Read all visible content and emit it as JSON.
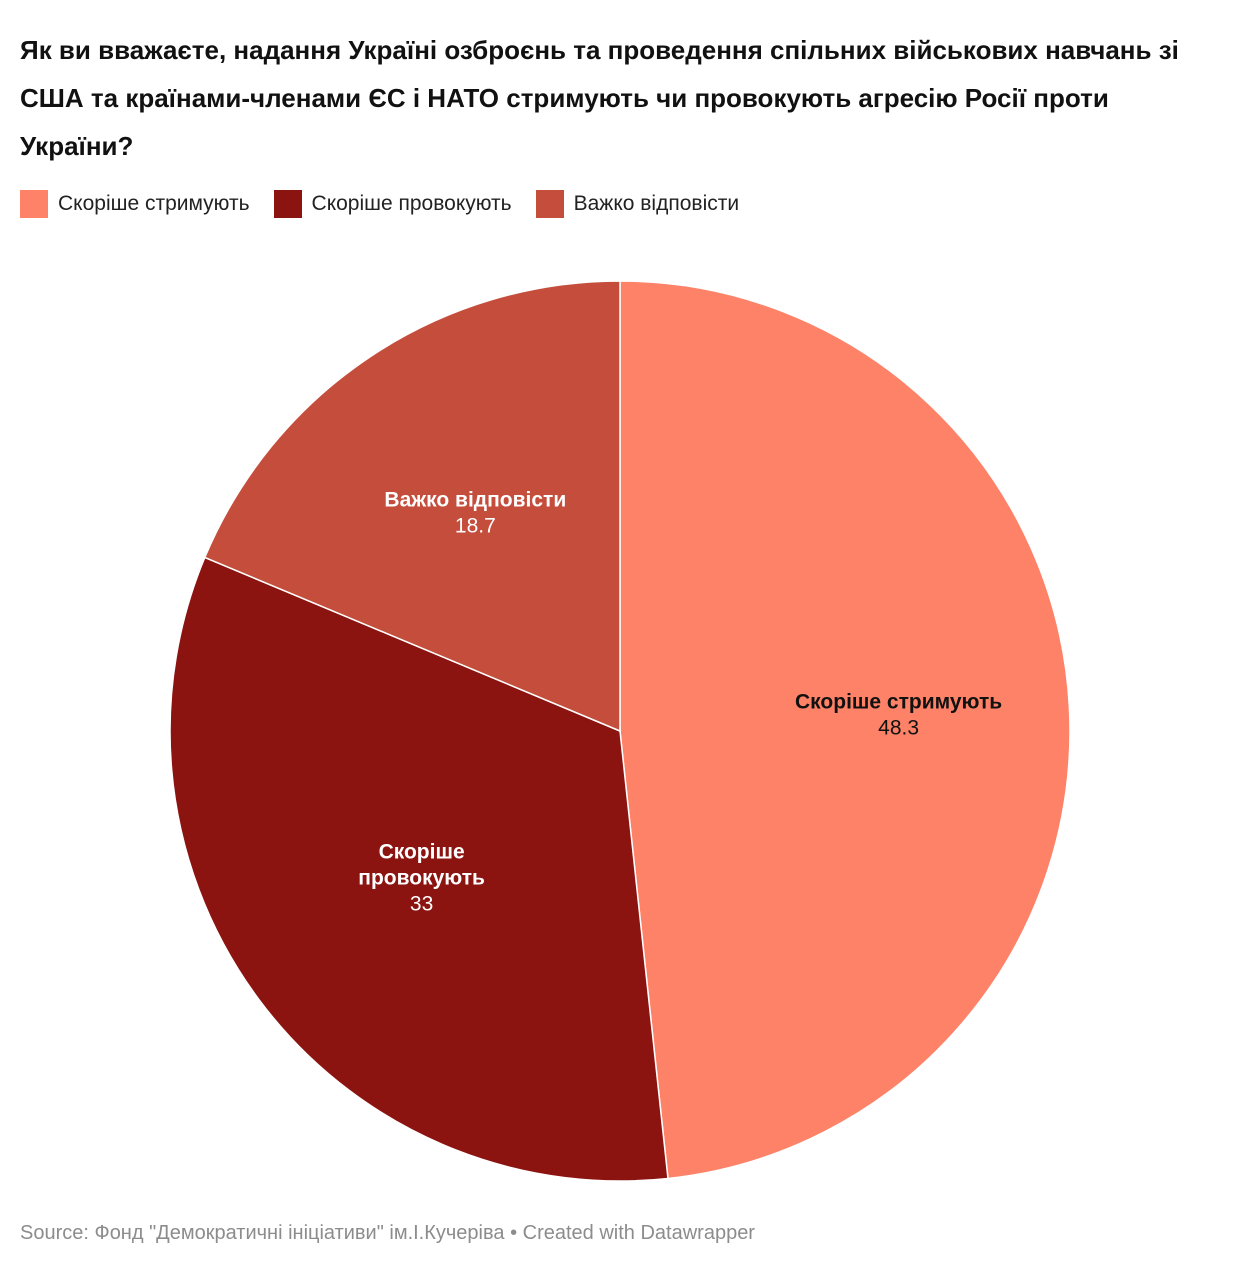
{
  "title": "Як  ви вважаєте, надання Україні озброєнь та проведення спільних військових навчань зі США та країнами-членами ЄС і НАТО стримують чи провокують агресію Росії проти України?",
  "legend": [
    {
      "label": "Скоріше стримують",
      "color": "#fe8267"
    },
    {
      "label": "Скоріше провокують",
      "color": "#8b1411"
    },
    {
      "label": "Важко відповісти",
      "color": "#c44d3b"
    }
  ],
  "chart_data": {
    "type": "pie",
    "categories": [
      "Скоріше стримують",
      "Скоріше провокують",
      "Важко відповісти"
    ],
    "values": [
      48.3,
      33,
      18.7
    ],
    "colors": [
      "#fe8267",
      "#8b1411",
      "#c44d3b"
    ],
    "label_lines": [
      [
        "Скоріше стримують"
      ],
      [
        "Скоріше",
        "провокують"
      ],
      [
        "Важко відповісти"
      ]
    ],
    "value_labels": [
      "48.3",
      "33",
      "18.7"
    ],
    "label_colors": [
      "#111111",
      "#ffffff",
      "#ffffff"
    ],
    "legend_position": "top-left"
  },
  "footer": "Source: Фонд \"Демократичні ініціативи\" ім.І.Кучеріва • Created with Datawrapper"
}
